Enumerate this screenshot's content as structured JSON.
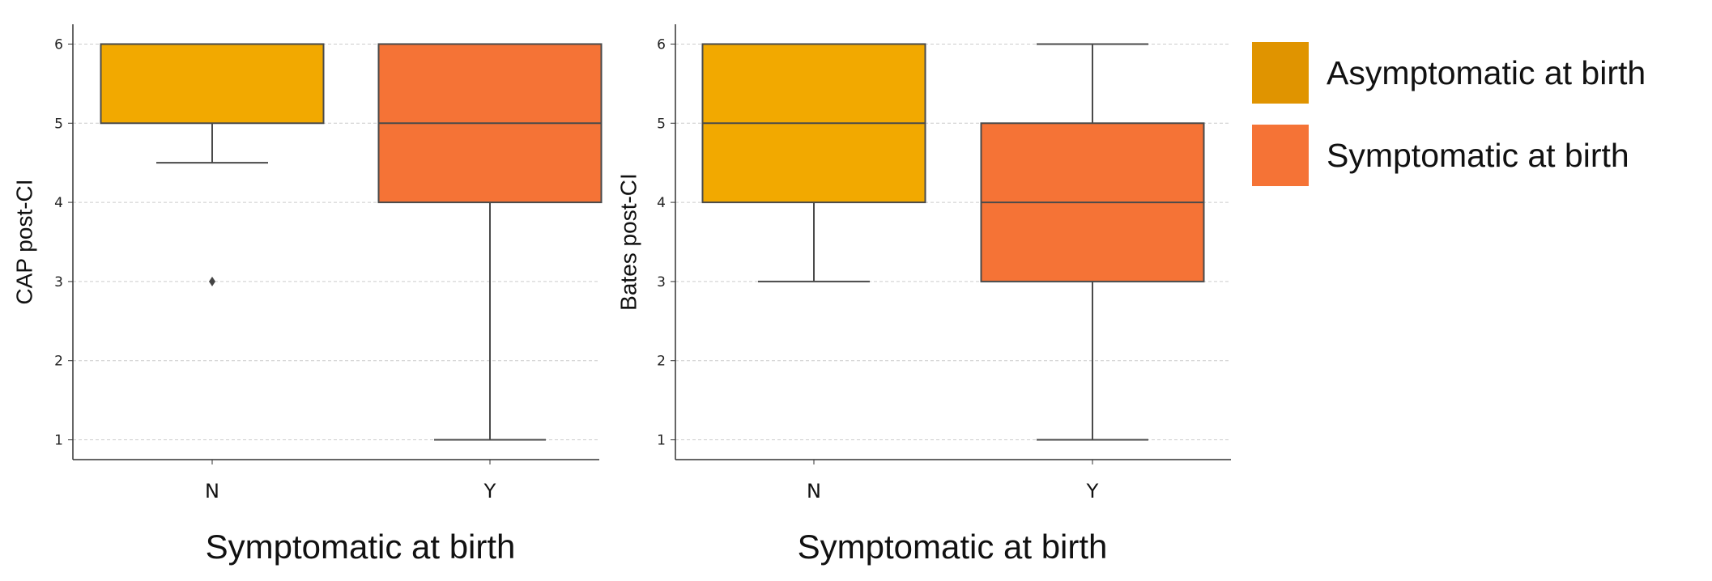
{
  "chart_data": [
    {
      "type": "box",
      "title": "",
      "xlabel": "Symptomatic at birth",
      "ylabel": "CAP post-CI",
      "ylim": [
        0.75,
        6.25
      ],
      "yticks": [
        1,
        2,
        3,
        4,
        5,
        6
      ],
      "grid": "horizontal dashed",
      "categories": [
        "N",
        "Y"
      ],
      "boxes": [
        {
          "category": "N",
          "series": "Asymptomatic at birth",
          "whisker_low": 4.5,
          "q1": 5,
          "median": 6,
          "q3": 6,
          "whisker_high": 6,
          "outliers": [
            3
          ]
        },
        {
          "category": "Y",
          "series": "Symptomatic at birth",
          "whisker_low": 1,
          "q1": 4,
          "median": 5,
          "q3": 6,
          "whisker_high": 6,
          "outliers": []
        }
      ]
    },
    {
      "type": "box",
      "title": "",
      "xlabel": "Symptomatic at birth",
      "ylabel": "Bates post-CI",
      "ylim": [
        0.75,
        6.25
      ],
      "yticks": [
        1,
        2,
        3,
        4,
        5,
        6
      ],
      "grid": "horizontal dashed",
      "categories": [
        "N",
        "Y"
      ],
      "boxes": [
        {
          "category": "N",
          "series": "Asymptomatic at birth",
          "whisker_low": 3,
          "q1": 4,
          "median": 5,
          "q3": 6,
          "whisker_high": 6,
          "outliers": []
        },
        {
          "category": "Y",
          "series": "Symptomatic at birth",
          "whisker_low": 1,
          "q1": 3,
          "median": 4,
          "q3": 5,
          "whisker_high": 6,
          "outliers": []
        }
      ]
    }
  ],
  "colors": {
    "asymptomatic_box": "#F2A900",
    "symptomatic_box": "#F57336",
    "asymptomatic_legend": "#E09400",
    "symptomatic_legend": "#F57336",
    "line": "#4a4a4a",
    "grid": "#cccccc"
  },
  "legend": {
    "items": [
      {
        "label": "Asymptomatic at birth",
        "color": "#E09400"
      },
      {
        "label": "Symptomatic at birth",
        "color": "#F57336"
      }
    ]
  }
}
